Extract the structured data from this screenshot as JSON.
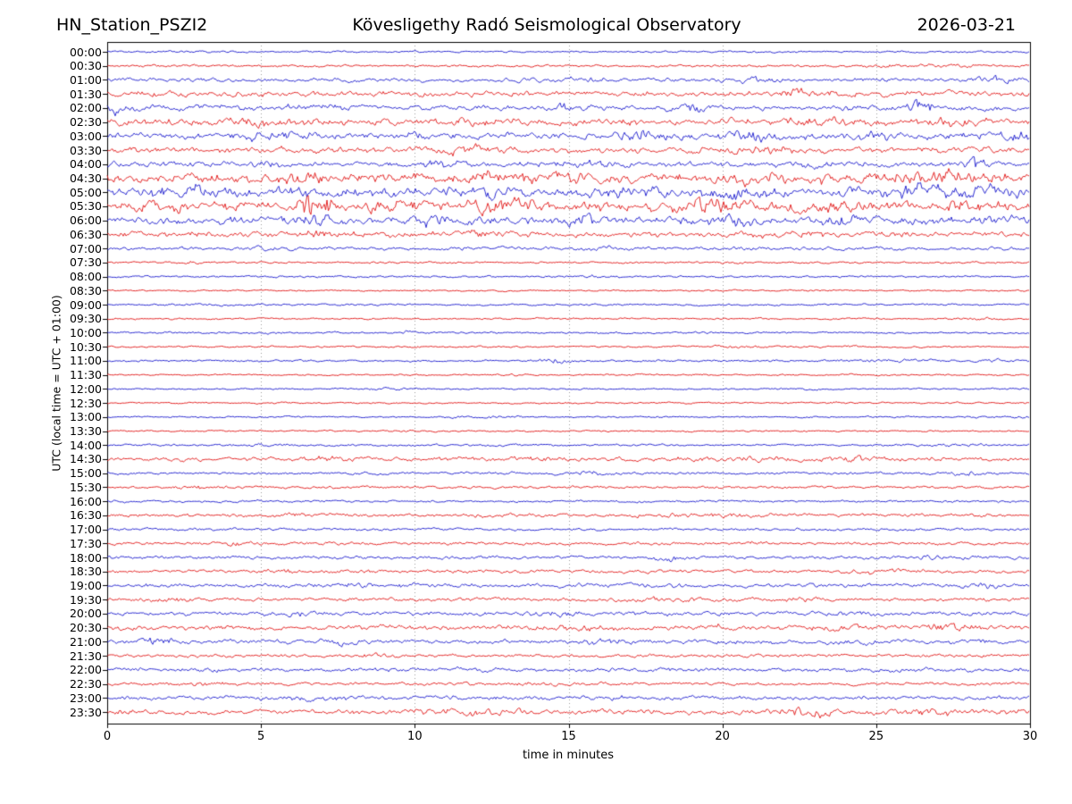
{
  "chart_data": {
    "type": "line",
    "subtype": "helicorder-dayplot",
    "station": "HN_Station_PSZI2",
    "title": "Kövesligethy Radó Seismological Observatory",
    "date": "2026-03-21",
    "xlabel": "time in minutes",
    "ylabel": "UTC (local time = UTC + 01:00)",
    "xlim": [
      0,
      30
    ],
    "xticks": [
      0,
      5,
      10,
      15,
      20,
      25,
      30
    ],
    "grid_minutes": [
      5,
      10,
      15,
      20,
      25
    ],
    "grid_style": "dotted",
    "colors": {
      "blue": "#1414cc",
      "red": "#e01010",
      "grid": "#999999",
      "frame": "#000000"
    },
    "rows": [
      {
        "label": "00:00",
        "color": "blue",
        "amp": 0.8,
        "events": []
      },
      {
        "label": "00:30",
        "color": "red",
        "amp": 1.0,
        "events": [
          [
            26.5,
            1.5,
            0.8
          ]
        ]
      },
      {
        "label": "01:00",
        "color": "blue",
        "amp": 1.5,
        "events": [
          [
            15,
            1,
            1
          ],
          [
            21,
            0.7,
            1.2
          ],
          [
            29,
            0.5,
            1.5
          ]
        ]
      },
      {
        "label": "01:30",
        "color": "red",
        "amp": 2.2,
        "events": [
          [
            22.5,
            0.8,
            1.5
          ]
        ]
      },
      {
        "label": "02:00",
        "color": "blue",
        "amp": 2.2,
        "events": [
          [
            0.2,
            0.18,
            5
          ],
          [
            7,
            0.7,
            1.2
          ],
          [
            14.8,
            0.4,
            2
          ],
          [
            19,
            0.5,
            2
          ],
          [
            26.4,
            0.3,
            5.5
          ]
        ]
      },
      {
        "label": "02:30",
        "color": "red",
        "amp": 2.8,
        "events": [
          [
            5,
            1,
            1.5
          ],
          [
            12,
            0.8,
            1
          ],
          [
            23,
            1.2,
            1.5
          ],
          [
            27.7,
            0.8,
            1.5
          ]
        ]
      },
      {
        "label": "03:00",
        "color": "blue",
        "amp": 2.6,
        "events": [
          [
            5.3,
            0.7,
            2.5
          ],
          [
            10,
            0.6,
            1.5
          ],
          [
            17.5,
            0.8,
            2.5
          ],
          [
            21,
            0.8,
            2
          ],
          [
            25,
            0.5,
            1.5
          ],
          [
            29.6,
            0.3,
            2.5
          ]
        ]
      },
      {
        "label": "03:30",
        "color": "red",
        "amp": 2.4,
        "events": [
          [
            11.5,
            0.8,
            1.8
          ],
          [
            21.5,
            1.2,
            1.5
          ],
          [
            28,
            0.6,
            1
          ]
        ]
      },
      {
        "label": "04:00",
        "color": "blue",
        "amp": 2.2,
        "events": [
          [
            5,
            0.3,
            1.5
          ],
          [
            11,
            0.5,
            1.5
          ],
          [
            15.5,
            0.6,
            2
          ],
          [
            23,
            0.4,
            1.5
          ],
          [
            28.2,
            0.25,
            5
          ]
        ]
      },
      {
        "label": "04:30",
        "color": "red",
        "amp": 3.5,
        "events": [
          [
            6,
            1,
            2
          ],
          [
            12,
            1.5,
            2
          ],
          [
            15,
            0.8,
            2
          ],
          [
            21,
            2,
            2
          ],
          [
            27,
            1.5,
            2.5
          ]
        ]
      },
      {
        "label": "05:00",
        "color": "blue",
        "amp": 3.5,
        "events": [
          [
            2.5,
            0.8,
            2
          ],
          [
            7,
            0.5,
            2
          ],
          [
            12,
            0.8,
            3.5
          ],
          [
            16,
            0.5,
            2
          ],
          [
            17.5,
            0.5,
            2
          ],
          [
            20.5,
            0.8,
            2.5
          ],
          [
            26.5,
            1,
            3.5
          ],
          [
            29,
            0.5,
            3
          ]
        ]
      },
      {
        "label": "05:30",
        "color": "red",
        "amp": 4.0,
        "events": [
          [
            2,
            0.5,
            2
          ],
          [
            6.8,
            0.35,
            9
          ],
          [
            9,
            0.5,
            2
          ],
          [
            12.8,
            0.6,
            5
          ],
          [
            19.8,
            0.6,
            4
          ],
          [
            23,
            0.8,
            2
          ],
          [
            28,
            0.8,
            2
          ]
        ]
      },
      {
        "label": "06:00",
        "color": "blue",
        "amp": 3.2,
        "events": [
          [
            6.8,
            0.3,
            4
          ],
          [
            10.5,
            0.5,
            2
          ],
          [
            15.3,
            0.5,
            3
          ],
          [
            20.3,
            0.5,
            3.5
          ],
          [
            24,
            0.5,
            2
          ],
          [
            29,
            0.4,
            2
          ]
        ]
      },
      {
        "label": "06:30",
        "color": "red",
        "amp": 2.2,
        "events": [
          [
            6.8,
            0.3,
            2
          ],
          [
            12,
            0.8,
            1
          ],
          [
            22,
            0.8,
            1
          ]
        ]
      },
      {
        "label": "07:00",
        "color": "blue",
        "amp": 1.4,
        "events": [
          [
            4.5,
            0.6,
            1.2
          ],
          [
            16,
            0.4,
            1
          ]
        ]
      },
      {
        "label": "07:30",
        "color": "red",
        "amp": 0.8,
        "events": [
          [
            2.6,
            0.3,
            1
          ],
          [
            20,
            0.5,
            0.5
          ]
        ]
      },
      {
        "label": "08:00",
        "color": "blue",
        "amp": 0.8,
        "events": [
          [
            15.8,
            0.5,
            0.7
          ]
        ]
      },
      {
        "label": "08:30",
        "color": "red",
        "amp": 0.7,
        "events": []
      },
      {
        "label": "09:00",
        "color": "blue",
        "amp": 0.8,
        "events": [
          [
            4,
            1,
            0.3
          ]
        ]
      },
      {
        "label": "09:30",
        "color": "red",
        "amp": 0.7,
        "events": [
          [
            28.5,
            0.5,
            0.6
          ]
        ]
      },
      {
        "label": "10:00",
        "color": "blue",
        "amp": 0.8,
        "events": [
          [
            5.2,
            0.3,
            0.8
          ],
          [
            9.7,
            0.4,
            0.8
          ]
        ]
      },
      {
        "label": "10:30",
        "color": "red",
        "amp": 0.7,
        "events": [
          [
            10,
            0.2,
            1
          ],
          [
            20.8,
            0.8,
            0.7
          ],
          [
            24.3,
            0.3,
            0.8
          ]
        ]
      },
      {
        "label": "11:00",
        "color": "blue",
        "amp": 0.9,
        "events": [
          [
            14.7,
            0.4,
            1.5
          ],
          [
            25.5,
            0.8,
            0.8
          ],
          [
            29,
            0.4,
            0.9
          ]
        ]
      },
      {
        "label": "11:30",
        "color": "red",
        "amp": 0.7,
        "events": [
          [
            13,
            0.4,
            0.5
          ]
        ]
      },
      {
        "label": "12:00",
        "color": "blue",
        "amp": 0.7,
        "events": [
          [
            9.3,
            0.4,
            0.6
          ],
          [
            22.5,
            0.5,
            0.5
          ]
        ]
      },
      {
        "label": "12:30",
        "color": "red",
        "amp": 0.7,
        "events": [
          [
            23.8,
            0.15,
            1.8
          ]
        ]
      },
      {
        "label": "13:00",
        "color": "blue",
        "amp": 0.7,
        "events": [
          [
            12.3,
            0.7,
            0.6
          ],
          [
            30,
            0.8,
            0.5
          ]
        ]
      },
      {
        "label": "13:30",
        "color": "red",
        "amp": 0.7,
        "events": [
          [
            9.7,
            0.2,
            0.8
          ]
        ]
      },
      {
        "label": "14:00",
        "color": "blue",
        "amp": 0.9,
        "events": [
          [
            5,
            0.5,
            0.6
          ],
          [
            27.8,
            0.5,
            0.9
          ]
        ]
      },
      {
        "label": "14:30",
        "color": "red",
        "amp": 1.7,
        "events": [
          [
            7.2,
            0.4,
            1
          ],
          [
            14,
            0.5,
            0.8
          ],
          [
            20.5,
            0.8,
            1
          ],
          [
            24.2,
            0.6,
            1
          ]
        ]
      },
      {
        "label": "15:00",
        "color": "blue",
        "amp": 1.1,
        "events": [
          [
            15.8,
            0.6,
            1
          ],
          [
            27.9,
            0.7,
            1
          ]
        ]
      },
      {
        "label": "15:30",
        "color": "red",
        "amp": 1.1,
        "events": [
          [
            2.8,
            0.4,
            1.2
          ]
        ]
      },
      {
        "label": "16:00",
        "color": "blue",
        "amp": 1.0,
        "events": []
      },
      {
        "label": "16:30",
        "color": "red",
        "amp": 1.4,
        "events": [
          [
            6,
            0.5,
            0.6
          ],
          [
            12.5,
            0.6,
            0.8
          ],
          [
            19.5,
            1.5,
            0.8
          ]
        ]
      },
      {
        "label": "17:00",
        "color": "blue",
        "amp": 1.1,
        "events": []
      },
      {
        "label": "17:30",
        "color": "red",
        "amp": 1.2,
        "events": [
          [
            4,
            0.6,
            0.8
          ],
          [
            21,
            0.5,
            0.6
          ]
        ]
      },
      {
        "label": "18:00",
        "color": "blue",
        "amp": 1.4,
        "events": [
          [
            18.3,
            0.5,
            1.2
          ],
          [
            27,
            0.5,
            0.8
          ]
        ]
      },
      {
        "label": "18:30",
        "color": "red",
        "amp": 1.4,
        "events": [
          [
            5.6,
            0.3,
            1
          ],
          [
            25.3,
            0.7,
            1
          ]
        ]
      },
      {
        "label": "19:00",
        "color": "blue",
        "amp": 1.7,
        "events": [
          [
            8.3,
            0.6,
            1
          ],
          [
            28.5,
            0.5,
            1.2
          ]
        ]
      },
      {
        "label": "19:30",
        "color": "red",
        "amp": 1.5,
        "events": [
          [
            1.8,
            0.4,
            1
          ],
          [
            18.5,
            0.6,
            0.8
          ],
          [
            22.5,
            0.5,
            0.8
          ]
        ]
      },
      {
        "label": "20:00",
        "color": "blue",
        "amp": 1.7,
        "events": [
          [
            6,
            0.6,
            1
          ],
          [
            14.5,
            0.5,
            1.2
          ],
          [
            24.5,
            0.5,
            0.8
          ]
        ]
      },
      {
        "label": "20:30",
        "color": "red",
        "amp": 2.0,
        "events": [
          [
            15.5,
            1,
            1.2
          ],
          [
            20,
            0.5,
            1
          ],
          [
            23.8,
            0.4,
            1.5
          ],
          [
            27.6,
            0.8,
            1.8
          ]
        ]
      },
      {
        "label": "21:00",
        "color": "blue",
        "amp": 1.8,
        "events": [
          [
            1.7,
            0.25,
            4
          ],
          [
            7.5,
            0.5,
            1
          ],
          [
            16.2,
            0.4,
            1.5
          ],
          [
            24.5,
            0.8,
            0.8
          ]
        ]
      },
      {
        "label": "21:30",
        "color": "red",
        "amp": 1.3,
        "events": [
          [
            5.8,
            0.2,
            1.5
          ],
          [
            8.5,
            0.5,
            0.7
          ]
        ]
      },
      {
        "label": "22:00",
        "color": "blue",
        "amp": 1.6,
        "events": [
          [
            3.5,
            0.5,
            0.8
          ],
          [
            12,
            0.5,
            0.6
          ],
          [
            25,
            0.7,
            0.6
          ]
        ]
      },
      {
        "label": "22:30",
        "color": "red",
        "amp": 1.3,
        "events": [
          [
            3.2,
            0.6,
            0.6
          ],
          [
            14,
            0.8,
            0.5
          ]
        ]
      },
      {
        "label": "23:00",
        "color": "blue",
        "amp": 1.6,
        "events": [
          [
            6.5,
            1,
            0.8
          ],
          [
            11,
            0.3,
            1.2
          ],
          [
            16.2,
            0.5,
            1
          ]
        ]
      },
      {
        "label": "23:30",
        "color": "red",
        "amp": 2.0,
        "events": [
          [
            11.5,
            1,
            1.5
          ],
          [
            22.6,
            0.7,
            2.8
          ],
          [
            27,
            1.2,
            1.2
          ]
        ]
      }
    ]
  }
}
